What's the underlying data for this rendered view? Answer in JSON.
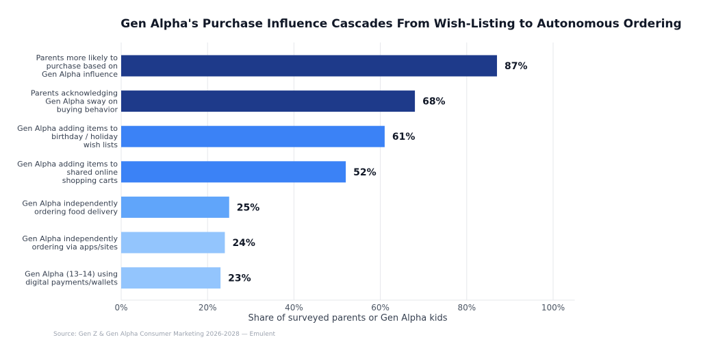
{
  "chart_data": {
    "type": "bar",
    "orientation": "horizontal",
    "title": "Gen Alpha's Purchase Influence Cascades From Wish-Listing to Autonomous Ordering",
    "xlabel": "Share of surveyed parents or Gen Alpha kids",
    "ylabel": "",
    "categories": [
      [
        "Parents more likely to",
        "purchase based on",
        "Gen Alpha influence"
      ],
      [
        "Parents acknowledging",
        "Gen Alpha sway on",
        "buying behavior"
      ],
      [
        "Gen Alpha adding items to",
        "birthday / holiday",
        "wish lists"
      ],
      [
        "Gen Alpha adding items to",
        "shared online",
        "shopping carts"
      ],
      [
        "Gen Alpha independently",
        "ordering food delivery"
      ],
      [
        "Gen Alpha independently",
        "ordering via apps/sites"
      ],
      [
        "Gen Alpha (13–14) using",
        "digital payments/wallets"
      ]
    ],
    "values": [
      87,
      68,
      61,
      52,
      25,
      24,
      23
    ],
    "data_labels": [
      "87%",
      "68%",
      "61%",
      "52%",
      "25%",
      "24%",
      "23%"
    ],
    "colors": [
      "#1e3a8a",
      "#1e3a8a",
      "#3b82f6",
      "#3b82f6",
      "#60a5fa",
      "#93c5fd",
      "#93c5fd"
    ],
    "xlim": [
      0,
      105
    ],
    "xticks": [
      0,
      20,
      40,
      60,
      80,
      100
    ],
    "xtick_labels": [
      "0%",
      "20%",
      "40%",
      "60%",
      "80%",
      "100%"
    ],
    "grid": "vertical"
  },
  "source": "Source: Gen Z & Gen Alpha Consumer Marketing 2026-2028 — Emulent"
}
